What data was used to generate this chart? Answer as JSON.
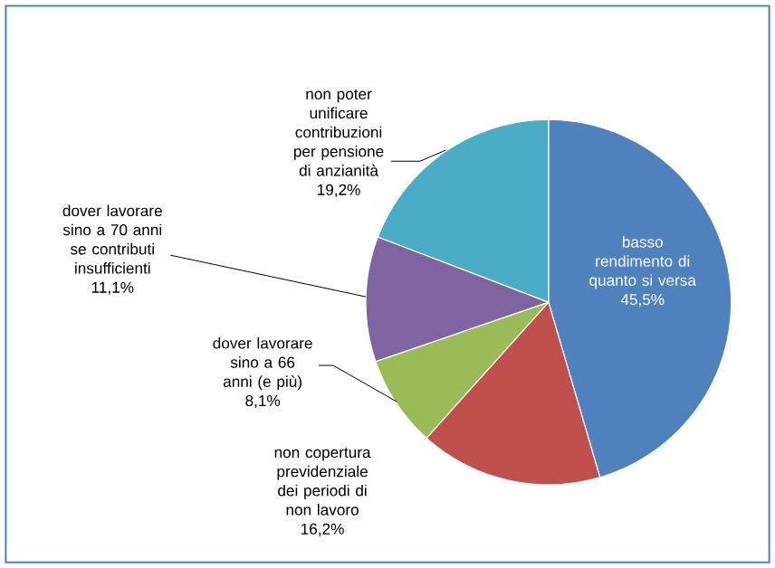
{
  "chart_data": {
    "type": "pie",
    "categories": [
      "basso rendimento di quanto si versa",
      "non copertura previdenziale dei periodi di non lavoro",
      "dover lavorare sino a 66 anni (e più)",
      "dover lavorare sino a 70 anni se contributi insufficienti",
      "non poter unificare contribuzioni per pensione di anzianità"
    ],
    "values": [
      45.5,
      16.2,
      8.1,
      11.1,
      19.2
    ],
    "value_labels": [
      "45,5%",
      "16,2%",
      "8,1%",
      "11,1%",
      "19,2%"
    ],
    "colors": [
      "#4f81bd",
      "#c0504d",
      "#9bbb59",
      "#8064a2",
      "#4bacc6"
    ]
  }
}
